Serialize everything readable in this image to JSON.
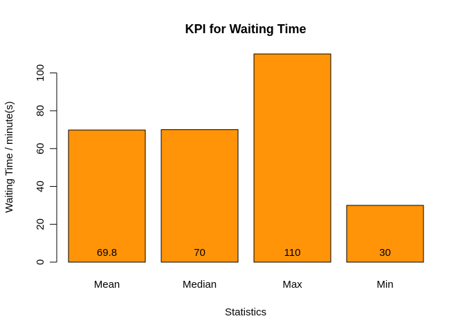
{
  "chart_data": {
    "type": "bar",
    "title": "KPI for Waiting Time",
    "xlabel": "Statistics",
    "ylabel": "Waiting Time / minute(s)",
    "categories": [
      "Mean",
      "Median",
      "Max",
      "Min"
    ],
    "values": [
      69.8,
      70,
      110,
      30
    ],
    "data_labels": [
      "69.8",
      "70",
      "110",
      "30"
    ],
    "ylim": [
      0,
      110
    ],
    "yticks": [
      0,
      20,
      40,
      60,
      80,
      100
    ],
    "bar_color": "#FF9408",
    "grid": false,
    "legend": "none"
  }
}
